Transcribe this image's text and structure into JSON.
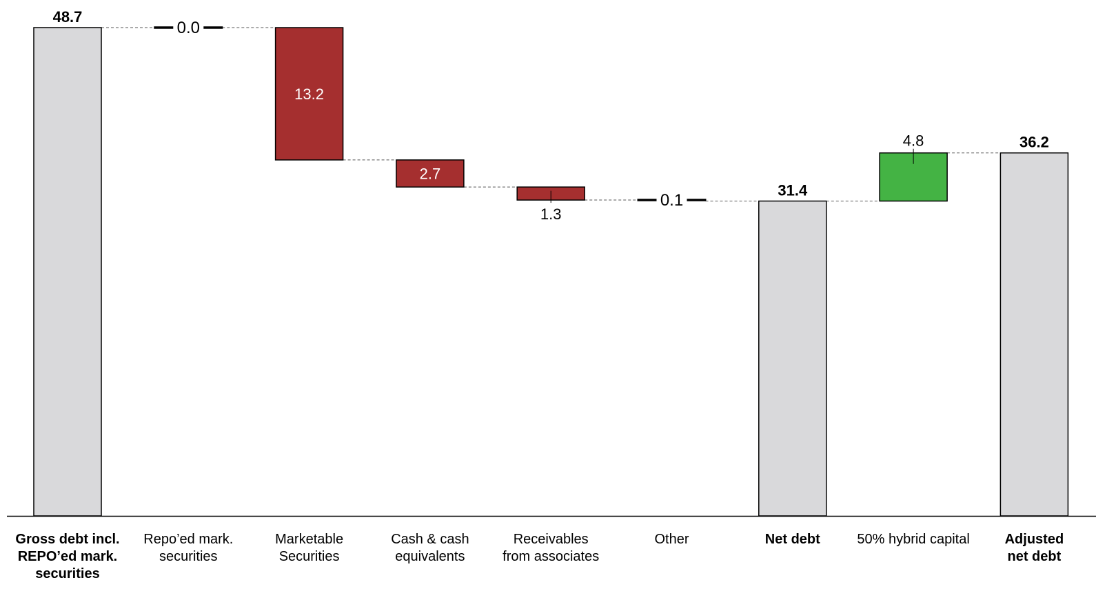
{
  "chart_data": {
    "type": "bar",
    "subtype": "waterfall",
    "title": "",
    "xlabel": "",
    "ylabel": "",
    "ylim": [
      0,
      48.7
    ],
    "grid": false,
    "legend": "none",
    "colors": {
      "total": "#d9d9db",
      "decrease": "#a52f2f",
      "increase": "#44b344",
      "outline": "#000000",
      "connector": "#555555"
    },
    "bars": [
      {
        "category": "Gross debt incl. REPO’ed mark. securities",
        "lines": [
          "Gross debt incl.",
          "REPO’ed mark.",
          "securities"
        ],
        "kind": "total",
        "value": 48.7,
        "label": "48.7",
        "bold": true
      },
      {
        "category": "Repo’ed mark. securities",
        "lines": [
          "Repo’ed mark.",
          "securities"
        ],
        "kind": "decrease",
        "value": 0.0,
        "label": "0.0",
        "bold": false
      },
      {
        "category": "Marketable Securities",
        "lines": [
          "Marketable",
          "Securities"
        ],
        "kind": "decrease",
        "value": 13.2,
        "label": "13.2",
        "bold": false
      },
      {
        "category": "Cash & cash equivalents",
        "lines": [
          "Cash & cash",
          "equivalents"
        ],
        "kind": "decrease",
        "value": 2.7,
        "label": "2.7",
        "bold": false
      },
      {
        "category": "Receivables from associates",
        "lines": [
          "Receivables",
          "from associates"
        ],
        "kind": "decrease",
        "value": 1.3,
        "label": "1.3",
        "bold": false
      },
      {
        "category": "Other",
        "lines": [
          "Other"
        ],
        "kind": "decrease",
        "value": 0.1,
        "label": "0.1",
        "bold": false
      },
      {
        "category": "Net debt",
        "lines": [
          "Net debt"
        ],
        "kind": "total",
        "value": 31.4,
        "label": "31.4",
        "bold": true
      },
      {
        "category": "50% hybrid capital",
        "lines": [
          "50% hybrid capital"
        ],
        "kind": "increase",
        "value": 4.8,
        "label": "4.8",
        "bold": false
      },
      {
        "category": "Adjusted net debt",
        "lines": [
          "Adjusted",
          "net debt"
        ],
        "kind": "total",
        "value": 36.2,
        "label": "36.2",
        "bold": true
      }
    ]
  }
}
